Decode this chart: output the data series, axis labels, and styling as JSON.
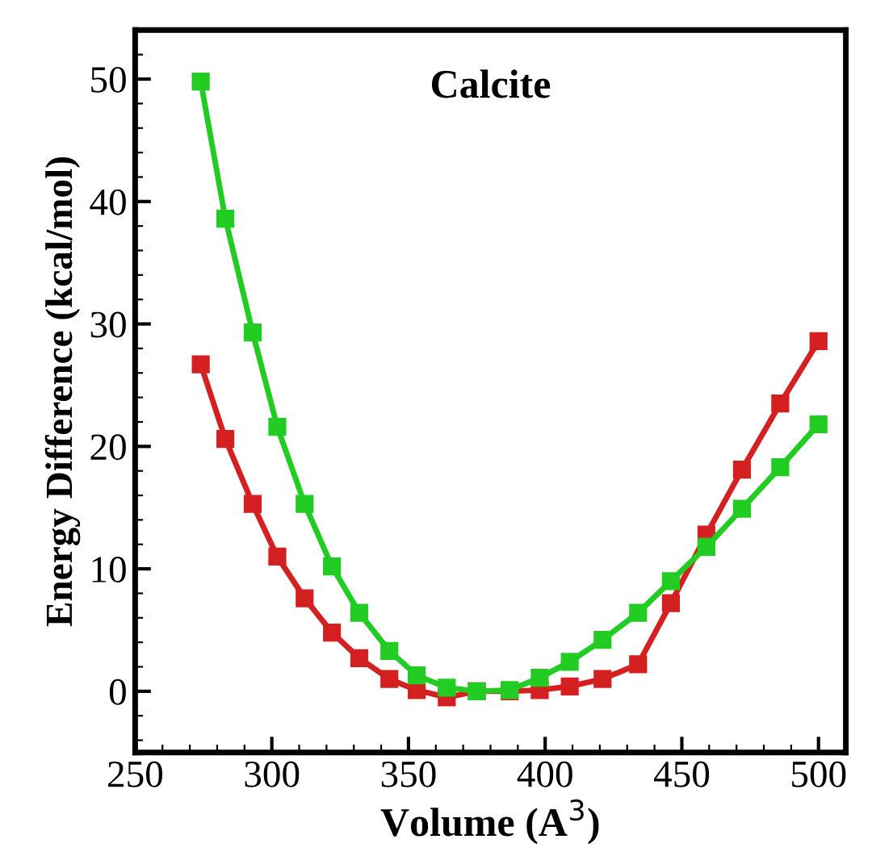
{
  "chart_data": {
    "type": "line",
    "title": "Calcite",
    "xlabel": "Volume (A$^{3}$)",
    "ylabel": "Energy Difference (kcal/mol)",
    "x": [
      274,
      283,
      293,
      302,
      312,
      322,
      332,
      343,
      353,
      364,
      375,
      387,
      398,
      409,
      421,
      434,
      446,
      459,
      472,
      486,
      500
    ],
    "series": [
      {
        "color": "#d42020",
        "values": [
          26.7,
          20.6,
          15.3,
          11.0,
          7.6,
          4.8,
          2.7,
          1.0,
          0.1,
          -0.5,
          0,
          0,
          0.1,
          0.4,
          1.0,
          2.2,
          7.2,
          12.8,
          18.1,
          23.5,
          28.6
        ]
      },
      {
        "color": "#22cc22",
        "values": [
          49.8,
          38.6,
          29.3,
          21.6,
          15.3,
          10.2,
          6.4,
          3.3,
          1.3,
          0.3,
          0,
          0.1,
          1.1,
          2.4,
          4.2,
          6.4,
          9.0,
          11.8,
          14.9,
          18.3,
          21.8
        ]
      }
    ],
    "xlim": [
      250,
      510
    ],
    "xticks": [
      250,
      300,
      350,
      400,
      450,
      500
    ],
    "ylim": [
      -5,
      54
    ],
    "yticks": [
      0,
      10,
      20,
      30,
      40,
      50
    ],
    "grid": false,
    "legend": false,
    "marker": "square",
    "line_style": "solid"
  }
}
